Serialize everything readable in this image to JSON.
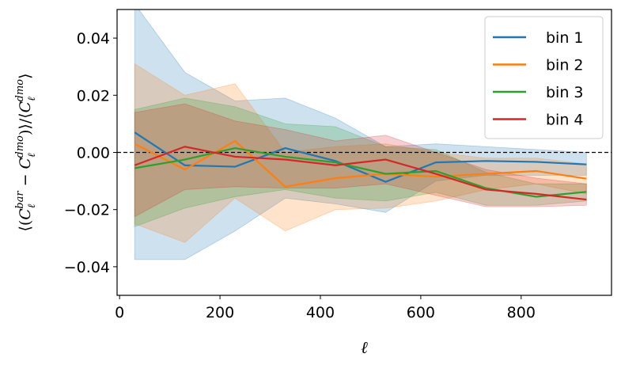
{
  "chart_data": {
    "type": "line",
    "xlabel": "ℓ",
    "ylabel": "⟨(C_ℓ^bar − C_ℓ^dmo)⟩/⟨C_ℓ^dmo⟩",
    "xlim": [
      -5,
      980
    ],
    "ylim": [
      -0.05,
      0.05
    ],
    "xticks": [
      "0",
      "200",
      "400",
      "600",
      "800"
    ],
    "yticks": [
      "0.04",
      "0.02",
      "0.00",
      "−0.02",
      "−0.04"
    ],
    "reference_line": 0.0,
    "legend_position": "top-right",
    "x": [
      30,
      130,
      230,
      330,
      430,
      530,
      630,
      730,
      830,
      930
    ],
    "series": [
      {
        "name": "bin 1",
        "color": "#1f77b4",
        "values": [
          0.007,
          -0.0045,
          -0.005,
          0.0015,
          -0.003,
          -0.0103,
          -0.0035,
          -0.003,
          -0.0033,
          -0.0042
        ],
        "upper": [
          0.052,
          0.028,
          0.018,
          0.019,
          0.012,
          0.002,
          0.003,
          0.002,
          0.001,
          0.0
        ],
        "lower": [
          -0.0375,
          -0.0375,
          -0.0275,
          -0.016,
          -0.018,
          -0.021,
          -0.01,
          -0.008,
          -0.008,
          -0.008
        ]
      },
      {
        "name": "bin 2",
        "color": "#ff7f0e",
        "values": [
          0.003,
          -0.006,
          0.004,
          -0.012,
          -0.009,
          -0.0075,
          -0.0085,
          -0.0075,
          -0.0065,
          -0.0092
        ],
        "upper": [
          0.031,
          0.02,
          0.024,
          0.0,
          0.002,
          0.003,
          0.0,
          -0.002,
          -0.002,
          -0.004
        ],
        "lower": [
          -0.025,
          -0.0315,
          -0.016,
          -0.0275,
          -0.02,
          -0.0195,
          -0.017,
          -0.013,
          -0.011,
          -0.0145
        ]
      },
      {
        "name": "bin 3",
        "color": "#2ca02c",
        "values": [
          -0.0055,
          -0.0025,
          0.0015,
          -0.0015,
          -0.0035,
          -0.0075,
          -0.0065,
          -0.0125,
          -0.0155,
          -0.0138
        ],
        "upper": [
          0.015,
          0.019,
          0.016,
          0.01,
          0.009,
          0.002,
          0.001,
          -0.007,
          -0.011,
          -0.011
        ],
        "lower": [
          -0.026,
          -0.0195,
          -0.0155,
          -0.013,
          -0.016,
          -0.017,
          -0.014,
          -0.0185,
          -0.0185,
          -0.017
        ]
      },
      {
        "name": "bin 4",
        "color": "#d62728",
        "values": [
          -0.0045,
          0.002,
          -0.0015,
          -0.0025,
          -0.0045,
          -0.0025,
          -0.0075,
          -0.013,
          -0.0145,
          -0.0165
        ],
        "upper": [
          0.014,
          0.017,
          0.011,
          0.008,
          0.004,
          0.006,
          0.0,
          -0.006,
          -0.009,
          -0.011
        ],
        "lower": [
          -0.0225,
          -0.013,
          -0.012,
          -0.0125,
          -0.0125,
          -0.011,
          -0.015,
          -0.019,
          -0.019,
          -0.0185
        ]
      }
    ]
  }
}
